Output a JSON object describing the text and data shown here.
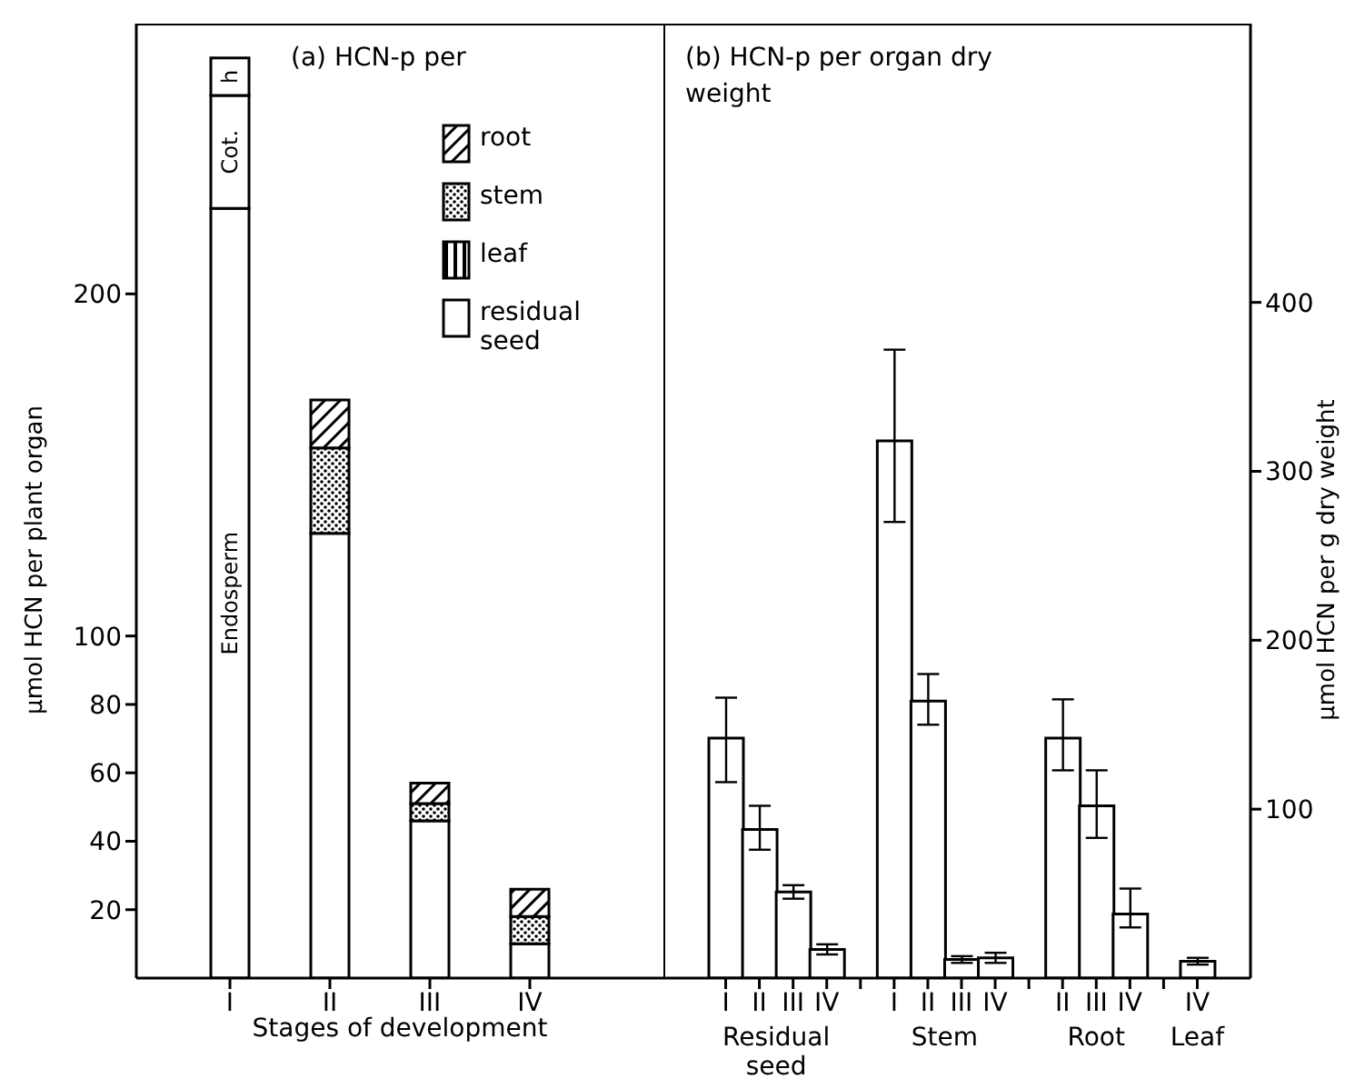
{
  "chart_data": [
    {
      "type": "bar",
      "title": "(a) HCN-p per",
      "xlabel": "Stages of development",
      "ylabel": "μmol HCN per plant organ",
      "categories": [
        "I",
        "II",
        "III",
        "IV"
      ],
      "stacked": true,
      "legend": "top right",
      "series": [
        {
          "name": "Endosperm",
          "color": "#ffffff",
          "values": [
            225,
            null,
            null,
            null
          ]
        },
        {
          "name": "residual seed",
          "color": "#ffffff",
          "values": [
            null,
            130,
            46,
            10
          ]
        },
        {
          "name": "Cot.",
          "color": "#ffffff",
          "values": [
            33,
            null,
            null,
            null
          ]
        },
        {
          "name": "h",
          "color": "#ffffff",
          "values": [
            11,
            null,
            null,
            null
          ]
        },
        {
          "name": "leaf",
          "color": "#000000",
          "values": [
            null,
            null,
            null,
            null
          ]
        },
        {
          "name": "stem",
          "color": "#000000",
          "values": [
            null,
            25,
            5,
            8
          ]
        },
        {
          "name": "root",
          "color": "#000000",
          "values": [
            null,
            14,
            6,
            8
          ]
        }
      ],
      "ylim": [
        0,
        279
      ],
      "yticks": [
        20,
        40,
        60,
        80,
        100,
        200
      ]
    },
    {
      "type": "bar",
      "title": "(b) HCN-p per organ dry weight",
      "y2label": "μmol HCN per g dry weight",
      "categories": [
        "I",
        "II",
        "III",
        "IV",
        null,
        "I",
        "II",
        "III",
        "IV",
        null,
        "II",
        "III",
        "IV",
        null,
        "IV"
      ],
      "series": [
        {
          "color": "#ffffff",
          "axis": "y2",
          "values": [
            142,
            88,
            51,
            17,
            null,
            318,
            164,
            11,
            12,
            null,
            142,
            102,
            38,
            null,
            10
          ],
          "errors": [
            [
              116,
              166
            ],
            [
              76,
              102
            ],
            [
              47,
              55
            ],
            [
              14,
              20
            ],
            null,
            [
              270,
              372
            ],
            [
              150,
              180
            ],
            [
              9,
              13
            ],
            [
              9,
              15
            ],
            null,
            [
              123,
              165
            ],
            [
              83,
              123
            ],
            [
              30,
              53
            ],
            null,
            [
              8,
              12
            ]
          ]
        }
      ],
      "y2lim": [
        0,
        565
      ],
      "y2ticks": [
        100,
        200,
        300,
        400
      ],
      "annotations": [
        "Residual seed",
        "Stem",
        "Root",
        "Leaf"
      ]
    }
  ]
}
